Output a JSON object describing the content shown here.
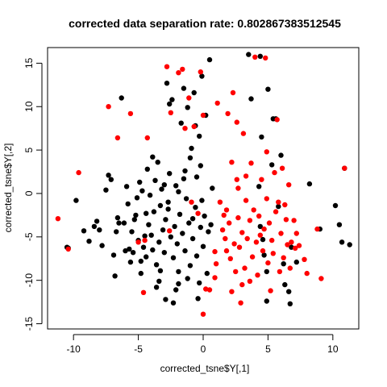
{
  "chart_data": {
    "type": "scatter",
    "title": "corrected data separation rate: 0.802867383512545",
    "xlabel": "corrected_tsne$Y[,1]",
    "ylabel": "corrected_tsne$Y[,2]",
    "xlim": [
      -12,
      12
    ],
    "ylim": [
      -15.6,
      16.8
    ],
    "xticks": [
      -10,
      -5,
      0,
      5,
      10
    ],
    "yticks": [
      -15,
      -10,
      -5,
      0,
      5,
      10,
      15
    ],
    "grid": false,
    "legend": "none",
    "series": [
      {
        "color": "#000000",
        "points": [
          [
            -10.4,
            -6.3
          ],
          [
            -9.8,
            -0.8
          ],
          [
            -9.2,
            -4.3
          ],
          [
            -8.8,
            -5.5
          ],
          [
            -8.4,
            -3.8
          ],
          [
            -8.2,
            -3.2
          ],
          [
            -8.0,
            -4.2
          ],
          [
            -7.8,
            -6.0
          ],
          [
            -7.5,
            0.4
          ],
          [
            -7.3,
            2.1
          ],
          [
            -7.1,
            1.6
          ],
          [
            -6.8,
            -9.5
          ],
          [
            -6.7,
            -4.4
          ],
          [
            -6.6,
            -2.8
          ],
          [
            -6.5,
            -3.4
          ],
          [
            -6.3,
            11.0
          ],
          [
            -6.1,
            -3.4
          ],
          [
            -6.0,
            -6.6
          ],
          [
            -5.9,
            0.8
          ],
          [
            -5.8,
            -1.2
          ],
          [
            -5.6,
            -7.9
          ],
          [
            -5.5,
            -4.4
          ],
          [
            -5.4,
            -6.8
          ],
          [
            -5.3,
            -3.0
          ],
          [
            -5.2,
            -2.5
          ],
          [
            -5.1,
            -0.5
          ],
          [
            -5.0,
            -5.4
          ],
          [
            -4.9,
            1.3
          ],
          [
            -4.8,
            -7.8
          ],
          [
            -4.7,
            0.3
          ],
          [
            -4.6,
            -6.2
          ],
          [
            -4.5,
            -4.9
          ],
          [
            -4.4,
            -7.3
          ],
          [
            -4.3,
            2.8
          ],
          [
            -4.2,
            -3.6
          ],
          [
            -4.1,
            -0.2
          ],
          [
            -4.0,
            -4.8
          ],
          [
            -3.9,
            -6.5
          ],
          [
            -3.8,
            -2.1
          ],
          [
            -3.7,
            1.5
          ],
          [
            -3.6,
            -8.2
          ],
          [
            -3.5,
            3.6
          ],
          [
            -3.4,
            -5.6
          ],
          [
            -3.3,
            -1.4
          ],
          [
            -3.2,
            0.5
          ],
          [
            -3.1,
            -4.2
          ],
          [
            -3.0,
            -6.8
          ],
          [
            -2.9,
            -3.0
          ],
          [
            -2.8,
            12.7
          ],
          [
            -2.7,
            -1.8
          ],
          [
            -2.6,
            2.3
          ],
          [
            -2.5,
            -5.0
          ],
          [
            -2.4,
            10.8
          ],
          [
            -2.3,
            -12.6
          ],
          [
            -2.3,
            -7.4
          ],
          [
            -2.2,
            -3.8
          ],
          [
            -2.1,
            0.9
          ],
          [
            -2.0,
            -5.8
          ],
          [
            -1.9,
            -9.0
          ],
          [
            -1.8,
            -2.4
          ],
          [
            -1.7,
            8.1
          ],
          [
            -1.6,
            -4.6
          ],
          [
            -1.5,
            1.7
          ],
          [
            -1.4,
            -6.6
          ],
          [
            -1.3,
            -0.6
          ],
          [
            -1.2,
            9.9
          ],
          [
            -1.1,
            -3.4
          ],
          [
            -1.0,
            -8.3
          ],
          [
            -0.9,
            5.2
          ],
          [
            -0.8,
            -5.2
          ],
          [
            -0.7,
            11.6
          ],
          [
            -0.6,
            -1.6
          ],
          [
            -0.5,
            -7.2
          ],
          [
            -0.4,
            -12.1
          ],
          [
            -0.3,
            6.6
          ],
          [
            -0.2,
            -3.9
          ],
          [
            -0.1,
            13.5
          ],
          [
            0.0,
            -6.1
          ],
          [
            0.1,
            -2.6
          ],
          [
            0.2,
            9.0
          ],
          [
            0.4,
            -4.4
          ],
          [
            0.5,
            15.4
          ],
          [
            0.7,
            0.6
          ],
          [
            -3.6,
            -10.8
          ],
          [
            -3.3,
            -8.9
          ],
          [
            -2.9,
            -12.2
          ],
          [
            -2.6,
            10.3
          ],
          [
            -1.9,
            -10.4
          ],
          [
            -1.5,
            12.1
          ],
          [
            -1.0,
            4.1
          ],
          [
            -0.6,
            7.8
          ],
          [
            -0.2,
            3.2
          ],
          [
            0.3,
            -9.2
          ],
          [
            -4.8,
            -9.2
          ],
          [
            -5.7,
            -6.4
          ],
          [
            -6.9,
            -7.1
          ],
          [
            -3.4,
            -10.1
          ],
          [
            -2.1,
            -11.1
          ],
          [
            -1.2,
            -9.8
          ],
          [
            -0.3,
            -10.3
          ],
          [
            -2.7,
            -1.0
          ],
          [
            -1.9,
            0.2
          ],
          [
            -1.4,
            2.6
          ],
          [
            -0.8,
            -2.9
          ],
          [
            -0.5,
            1.9
          ],
          [
            -0.1,
            -0.8
          ],
          [
            0.6,
            -3.6
          ],
          [
            -4.4,
            -2.3
          ],
          [
            -3.9,
            4.2
          ],
          [
            -3.0,
            1.0
          ],
          [
            3.5,
            16.0
          ],
          [
            3.7,
            10.9
          ],
          [
            4.4,
            15.8
          ],
          [
            4.5,
            6.5
          ],
          [
            4.3,
            0.8
          ],
          [
            4.4,
            -3.8
          ],
          [
            4.6,
            -5.3
          ],
          [
            4.7,
            -7.1
          ],
          [
            4.9,
            -9.0
          ],
          [
            4.9,
            -12.4
          ],
          [
            5.0,
            12.0
          ],
          [
            5.3,
            3.3
          ],
          [
            5.4,
            8.6
          ],
          [
            5.6,
            8.6
          ],
          [
            5.8,
            -1.5
          ],
          [
            6.0,
            4.4
          ],
          [
            6.2,
            -8.1
          ],
          [
            6.3,
            -10.5
          ],
          [
            6.6,
            -11.3
          ],
          [
            6.7,
            -12.7
          ],
          [
            6.8,
            -6.2
          ],
          [
            7.2,
            -7.9
          ],
          [
            8.2,
            1.1
          ],
          [
            9.0,
            -4.1
          ],
          [
            10.2,
            -1.4
          ],
          [
            10.5,
            -3.6
          ],
          [
            10.7,
            -5.6
          ],
          [
            10.9,
            2.9
          ],
          [
            11.3,
            -5.9
          ],
          [
            -10.5,
            -6.2
          ]
        ]
      },
      {
        "color": "#ff0000",
        "points": [
          [
            -11.2,
            -2.9
          ],
          [
            -10.4,
            -6.4
          ],
          [
            -9.6,
            2.4
          ],
          [
            -7.3,
            10.0
          ],
          [
            -5.6,
            9.2
          ],
          [
            -5.0,
            -5.6
          ],
          [
            -4.6,
            -11.4
          ],
          [
            -4.3,
            6.4
          ],
          [
            -6.6,
            6.4
          ],
          [
            -4.5,
            -5.4
          ],
          [
            -2.8,
            14.6
          ],
          [
            -2.6,
            -4.3
          ],
          [
            -2.5,
            9.3
          ],
          [
            -1.9,
            13.9
          ],
          [
            -1.6,
            14.3
          ],
          [
            -1.4,
            7.5
          ],
          [
            -1.1,
            11.0
          ],
          [
            -0.9,
            -1.0
          ],
          [
            -0.7,
            7.7
          ],
          [
            -0.4,
            -2.3
          ],
          [
            -0.2,
            14.0
          ],
          [
            0.0,
            9.0
          ],
          [
            0.0,
            -13.9
          ],
          [
            0.2,
            -11.0
          ],
          [
            0.5,
            -11.1
          ],
          [
            0.9,
            -9.7
          ],
          [
            1.1,
            10.4
          ],
          [
            1.3,
            -1.0
          ],
          [
            1.5,
            -4.2
          ],
          [
            1.6,
            -2.5
          ],
          [
            1.7,
            -5.2
          ],
          [
            1.8,
            -6.6
          ],
          [
            1.9,
            9.2
          ],
          [
            2.0,
            -3.4
          ],
          [
            2.1,
            -7.5
          ],
          [
            2.2,
            -11.3
          ],
          [
            2.3,
            11.6
          ],
          [
            2.4,
            -5.8
          ],
          [
            2.5,
            -9.0
          ],
          [
            2.6,
            8.2
          ],
          [
            2.6,
            1.6
          ],
          [
            2.7,
            -2.8
          ],
          [
            2.8,
            -6.2
          ],
          [
            2.9,
            -12.6
          ],
          [
            3.0,
            -4.5
          ],
          [
            3.1,
            6.9
          ],
          [
            3.2,
            -8.6
          ],
          [
            3.3,
            -0.8
          ],
          [
            3.4,
            -5.2
          ],
          [
            3.6,
            -3.1
          ],
          [
            3.7,
            3.5
          ],
          [
            3.8,
            -7.3
          ],
          [
            3.9,
            -1.9
          ],
          [
            4.0,
            15.7
          ],
          [
            4.1,
            -5.6
          ],
          [
            4.2,
            -9.4
          ],
          [
            4.3,
            -2.6
          ],
          [
            4.5,
            1.6
          ],
          [
            4.6,
            -6.6
          ],
          [
            4.7,
            -4.1
          ],
          [
            4.8,
            15.6
          ],
          [
            4.9,
            -0.6
          ],
          [
            5.0,
            -8.0
          ],
          [
            5.1,
            -3.4
          ],
          [
            5.2,
            -11.2
          ],
          [
            5.3,
            -5.4
          ],
          [
            5.4,
            -6.9
          ],
          [
            5.5,
            2.4
          ],
          [
            5.7,
            8.5
          ],
          [
            5.8,
            -1.0
          ],
          [
            5.9,
            -9.0
          ],
          [
            6.0,
            -4.6
          ],
          [
            6.1,
            2.9
          ],
          [
            6.2,
            -7.4
          ],
          [
            6.4,
            -3.0
          ],
          [
            6.5,
            -5.9
          ],
          [
            6.6,
            1.0
          ],
          [
            6.7,
            -8.6
          ],
          [
            6.8,
            -5.6
          ],
          [
            7.0,
            -3.1
          ],
          [
            7.1,
            -6.3
          ],
          [
            7.2,
            -4.6
          ],
          [
            7.4,
            -6.0
          ],
          [
            7.8,
            -7.6
          ],
          [
            8.0,
            -9.2
          ],
          [
            8.8,
            -4.1
          ],
          [
            9.1,
            -9.8
          ],
          [
            10.9,
            2.9
          ],
          [
            3.0,
            -10.5
          ],
          [
            1.0,
            -8.1
          ],
          [
            2.7,
            0.6
          ],
          [
            3.3,
            2.0
          ],
          [
            4.9,
            4.8
          ],
          [
            1.8,
            -1.9
          ],
          [
            2.2,
            3.6
          ],
          [
            0.9,
            -6.7
          ],
          [
            6.3,
            -1.3
          ],
          [
            5.6,
            -2.1
          ],
          [
            3.6,
            -10.1
          ],
          [
            4.4,
            -4.8
          ]
        ]
      }
    ]
  }
}
